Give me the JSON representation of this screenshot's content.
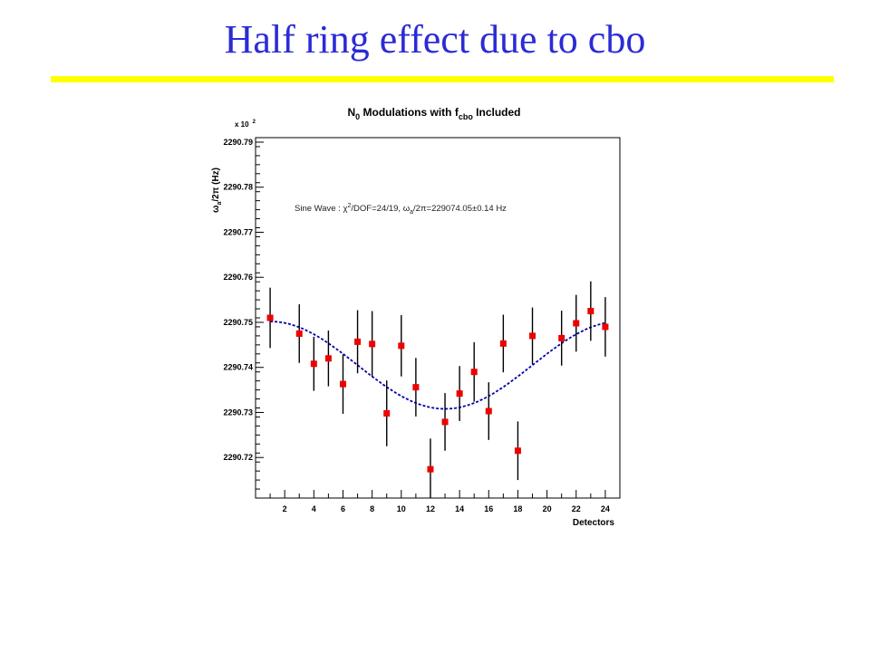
{
  "slide": {
    "title": "Half ring effect due to cbo",
    "title_color": "#2b2bd6",
    "rule_color": "#ffff00"
  },
  "chart_data": {
    "type": "scatter",
    "title_parts": {
      "n_main": "N",
      "n_sub": "0",
      "middle": " Modulations with f",
      "f_sub": "cbo",
      "end": " Included"
    },
    "ylabel_parts": {
      "omega": "ω",
      "omega_sub": "a",
      "rest": "/2π (Hz)"
    },
    "xlabel": "Detectors",
    "y_multiplier": "x 10",
    "y_multiplier_exp": "2",
    "xlim": [
      0,
      25
    ],
    "ylim": [
      2290.711,
      2290.791
    ],
    "x_ticks": [
      2,
      4,
      6,
      8,
      10,
      12,
      14,
      16,
      18,
      20,
      22,
      24
    ],
    "x_tick_labels": [
      "2",
      "4",
      "6",
      "8",
      "10",
      "12",
      "14",
      "16",
      "18",
      "20",
      "22",
      "24"
    ],
    "y_ticks": [
      2290.72,
      2290.73,
      2290.74,
      2290.75,
      2290.76,
      2290.77,
      2290.78,
      2290.79
    ],
    "y_tick_labels": [
      "2290.72",
      "2290.73",
      "2290.74",
      "2290.75",
      "2290.76",
      "2290.77",
      "2290.78",
      "2290.79"
    ],
    "grid": false,
    "points": [
      {
        "x": 1,
        "y": 2290.751,
        "err": 0.0067
      },
      {
        "x": 3,
        "y": 2290.7475,
        "err": 0.0065
      },
      {
        "x": 4,
        "y": 2290.7408,
        "err": 0.006
      },
      {
        "x": 5,
        "y": 2290.742,
        "err": 0.0062
      },
      {
        "x": 6,
        "y": 2290.7363,
        "err": 0.0066
      },
      {
        "x": 7,
        "y": 2290.7457,
        "err": 0.007
      },
      {
        "x": 8,
        "y": 2290.7452,
        "err": 0.0073
      },
      {
        "x": 9,
        "y": 2290.7298,
        "err": 0.0073
      },
      {
        "x": 10,
        "y": 2290.7448,
        "err": 0.0068
      },
      {
        "x": 11,
        "y": 2290.7356,
        "err": 0.0065
      },
      {
        "x": 12,
        "y": 2290.7174,
        "err": 0.0068
      },
      {
        "x": 13,
        "y": 2290.7279,
        "err": 0.0064
      },
      {
        "x": 14,
        "y": 2290.7342,
        "err": 0.0061
      },
      {
        "x": 15,
        "y": 2290.739,
        "err": 0.0066
      },
      {
        "x": 16,
        "y": 2290.7303,
        "err": 0.0064
      },
      {
        "x": 17,
        "y": 2290.7453,
        "err": 0.0064
      },
      {
        "x": 18,
        "y": 2290.7215,
        "err": 0.0065
      },
      {
        "x": 19,
        "y": 2290.747,
        "err": 0.0063
      },
      {
        "x": 21,
        "y": 2290.7465,
        "err": 0.0061
      },
      {
        "x": 22,
        "y": 2290.7498,
        "err": 0.0063
      },
      {
        "x": 23,
        "y": 2290.7525,
        "err": 0.0066
      },
      {
        "x": 24,
        "y": 2290.749,
        "err": 0.0066
      }
    ],
    "fit_curve": {
      "style": "dashed",
      "offset": 2290.7405,
      "amplitude": 0.0097,
      "phase_x": 1,
      "period": 24
    },
    "annotation": {
      "prefix": "Sine Wave :  ",
      "chi": "χ",
      "chi_sup": "2",
      "chi_rest": "/DOF=24/19,   ",
      "omega": "ω",
      "omega_sub": "a",
      "omega_rest": "/2π=229074.05±0.14 Hz"
    },
    "colors": {
      "points": "#ee0000",
      "errorbars": "#000000",
      "fit": "#0000aa",
      "frame": "#000000"
    }
  }
}
